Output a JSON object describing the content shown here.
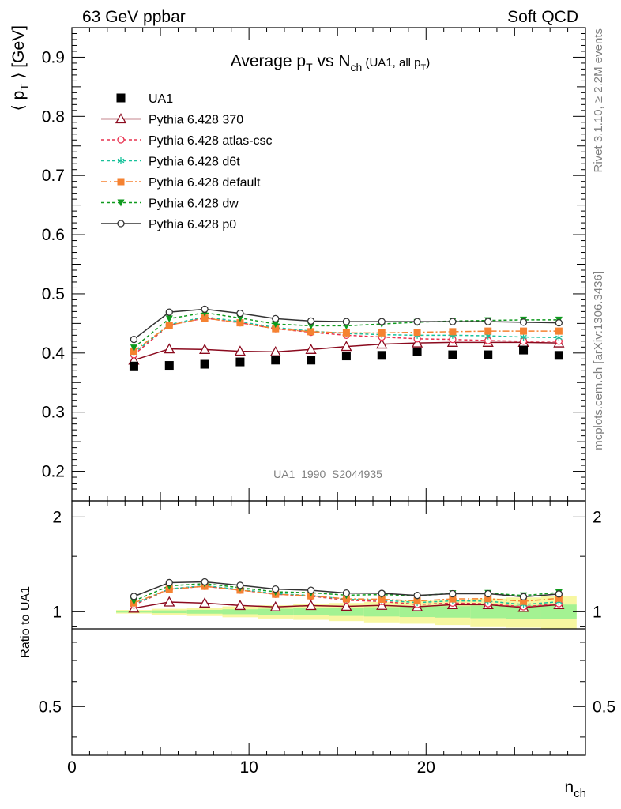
{
  "header": {
    "left": "63 GeV ppbar",
    "right": "Soft QCD"
  },
  "side": {
    "rivet": "Rivet 3.1.10, ≥ 2.2M events",
    "mcplots": "mcplots.cern.ch [arXiv:1306.3436]"
  },
  "analysis_id": "UA1_1990_S2044935",
  "chart_data": {
    "type": "line",
    "title": {
      "main": "Average p",
      "sub1": "T",
      "mid": " vs N",
      "sub2": "ch",
      "small": " (UA1, all p",
      "sub3": "T",
      "close": ")"
    },
    "ylabel": {
      "pre": "⟨ p",
      "sub": "T",
      "post": " ⟩ [GeV]"
    },
    "xlabel": {
      "main": "n",
      "sub": "ch"
    },
    "ratio_ylabel": "Ratio to UA1",
    "xlim": [
      0,
      29
    ],
    "ylim": [
      0.15,
      0.95
    ],
    "ratio_ylim": [
      0.35,
      2.25
    ],
    "x_ticks": [
      "0",
      "10",
      "20"
    ],
    "x_tick_values": [
      0,
      10,
      20
    ],
    "y_ticks": [
      "0.2",
      "0.3",
      "0.4",
      "0.5",
      "0.6",
      "0.7",
      "0.8",
      "0.9"
    ],
    "y_tick_values": [
      0.2,
      0.3,
      0.4,
      0.5,
      0.6,
      0.7,
      0.8,
      0.9
    ],
    "ratio_ticks": [
      "0.5",
      "1",
      "2"
    ],
    "ratio_tick_values": [
      0.5,
      1,
      2
    ],
    "legend_position": "top-left",
    "x": [
      3.5,
      5.5,
      7.5,
      9.5,
      11.5,
      13.5,
      15.5,
      17.5,
      19.5,
      21.5,
      23.5,
      25.5,
      27.5
    ],
    "data": {
      "name": "UA1",
      "values": [
        0.378,
        0.379,
        0.381,
        0.385,
        0.388,
        0.388,
        0.395,
        0.396,
        0.402,
        0.397,
        0.397,
        0.405,
        0.396
      ]
    },
    "series": [
      {
        "name": "Pythia 6.428 370",
        "color": "#8b0a1e",
        "dash": "",
        "marker": "triangle-open",
        "values": [
          0.388,
          0.407,
          0.406,
          0.403,
          0.402,
          0.406,
          0.411,
          0.415,
          0.417,
          0.418,
          0.418,
          0.418,
          0.417
        ]
      },
      {
        "name": "Pythia 6.428 atlas-csc",
        "color": "#e8304e",
        "dash": "4,3",
        "marker": "circle-open",
        "values": [
          0.397,
          0.447,
          0.459,
          0.451,
          0.441,
          0.435,
          0.43,
          0.427,
          0.424,
          0.423,
          0.421,
          0.42,
          0.42
        ]
      },
      {
        "name": "Pythia 6.428 d6t",
        "color": "#17c29b",
        "dash": "4,3",
        "marker": "asterisk",
        "values": [
          0.4,
          0.448,
          0.461,
          0.453,
          0.443,
          0.437,
          0.433,
          0.431,
          0.43,
          0.43,
          0.429,
          0.427,
          0.426
        ]
      },
      {
        "name": "Pythia 6.428 default",
        "color": "#f58231",
        "dash": "8,3,2,3",
        "marker": "square",
        "values": [
          0.403,
          0.447,
          0.459,
          0.451,
          0.441,
          0.436,
          0.434,
          0.434,
          0.435,
          0.436,
          0.437,
          0.437,
          0.437
        ]
      },
      {
        "name": "Pythia 6.428 dw",
        "color": "#0f9a1e",
        "dash": "4,3",
        "marker": "triangle-down",
        "values": [
          0.409,
          0.458,
          0.468,
          0.459,
          0.449,
          0.446,
          0.446,
          0.449,
          0.452,
          0.454,
          0.455,
          0.456,
          0.456
        ]
      },
      {
        "name": "Pythia 6.428 p0",
        "color": "#333333",
        "dash": "",
        "marker": "circle-open",
        "values": [
          0.423,
          0.469,
          0.474,
          0.467,
          0.458,
          0.454,
          0.453,
          0.453,
          0.453,
          0.453,
          0.453,
          0.452,
          0.451
        ]
      }
    ]
  }
}
